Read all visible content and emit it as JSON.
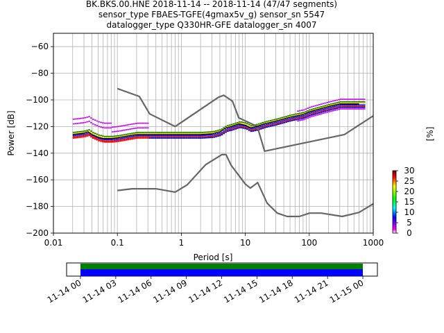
{
  "header": {
    "line1": "BK.BKS.00.HNE   2018-11-14 -- 2018-11-14  (47/47 segments)",
    "line2": "sensor_type FBAES-TGFE(4gmax5v_g) sensor_sn 5547",
    "line3": "datalogger_type Q330HR-GFE datalogger_sn 4007"
  },
  "chart_data": {
    "type": "line",
    "xscale": "log",
    "xlabel": "Period [s]",
    "ylabel": "Power [dB]",
    "xlim": [
      0.01,
      1000
    ],
    "ylim": [
      -200,
      -50
    ],
    "grid": true,
    "x_ticks": [
      "0.01",
      "0.1",
      "1",
      "10",
      "100",
      "1000"
    ],
    "y_ticks": [
      "−200",
      "−180",
      "−160",
      "−140",
      "−120",
      "−100",
      "−80",
      "−60"
    ],
    "colorbar": {
      "label": "[%]",
      "range": [
        0,
        30
      ],
      "ticks": [
        "0",
        "5",
        "10",
        "15",
        "20",
        "25",
        "30"
      ]
    },
    "series": [
      {
        "role": "high_noise_model",
        "color": "#666666",
        "x": [
          0.1,
          0.22,
          0.32,
          0.8,
          3.8,
          4.6,
          6.3,
          7.9,
          15.4,
          20,
          354.8,
          1000
        ],
        "y": [
          -91.5,
          -97.4,
          -110.5,
          -120,
          -98,
          -96.5,
          -101,
          -113.5,
          -120,
          -138.5,
          -126,
          -112
        ]
      },
      {
        "role": "low_noise_model",
        "color": "#666666",
        "x": [
          0.1,
          0.17,
          0.4,
          0.8,
          1.24,
          2.4,
          4.3,
          5,
          6,
          10,
          12,
          15.6,
          21.9,
          31.6,
          45,
          70,
          101,
          154,
          328,
          600,
          1000
        ],
        "y": [
          -168,
          -166.7,
          -166.7,
          -169.2,
          -163.7,
          -148.6,
          -141.1,
          -141.1,
          -149,
          -163.2,
          -166.2,
          -162.1,
          -177.5,
          -185,
          -187.5,
          -187.5,
          -185,
          -185,
          -187.5,
          -184.5,
          -178
        ]
      },
      {
        "role": "mode_psd",
        "color": "#000000",
        "x": [
          0.02,
          0.03,
          0.035,
          0.04,
          0.05,
          0.06,
          0.08,
          0.1,
          0.15,
          0.2,
          0.3,
          0.5,
          1,
          2,
          3,
          4,
          5,
          6,
          8,
          10,
          12,
          15,
          20,
          30,
          50,
          80,
          100,
          200,
          300,
          600
        ],
        "y": [
          -126,
          -125,
          -124,
          -126,
          -128,
          -129,
          -129,
          -128.5,
          -127,
          -126,
          -126,
          -126,
          -126,
          -126,
          -125.5,
          -124,
          -121,
          -120,
          -118,
          -119,
          -121,
          -120,
          -118,
          -116,
          -113,
          -111,
          -109,
          -105,
          -103,
          -103
        ]
      }
    ],
    "timeline": {
      "tick_labels": [
        "11-14 00",
        "11-14 03",
        "11-14 06",
        "11-14 09",
        "11-14 12",
        "11-14 15",
        "11-14 18",
        "11-14 21",
        "11-15 00"
      ],
      "bands": [
        {
          "color": "#008000",
          "start": "11-14 00",
          "end": "11-15 00"
        },
        {
          "color": "#0000ff",
          "start": "11-14 00",
          "end": "11-15 00"
        }
      ]
    }
  }
}
